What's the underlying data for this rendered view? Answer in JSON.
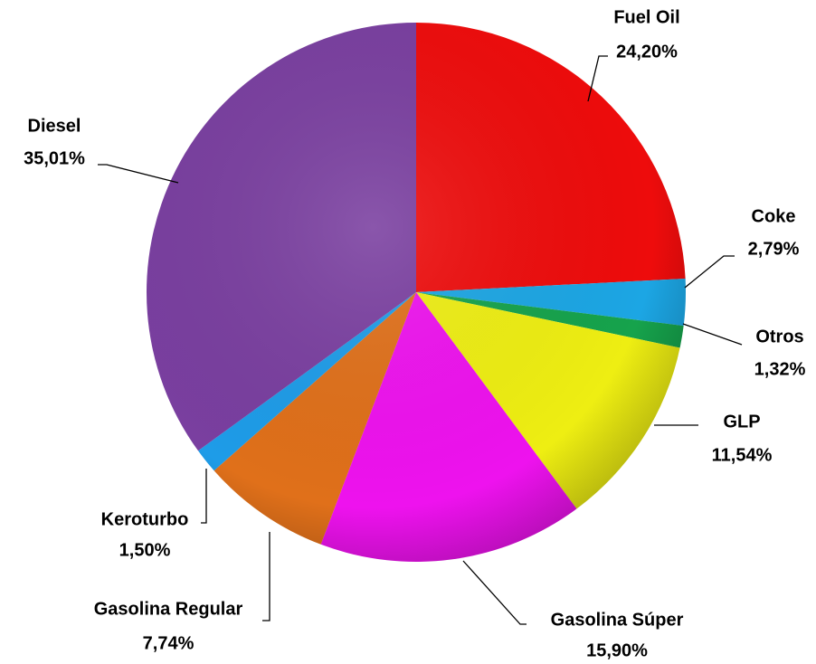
{
  "chart_data": {
    "type": "pie",
    "categories": [
      "Fuel Oil",
      "Coke",
      "Otros",
      "GLP",
      "Gasolina Súper",
      "Gasolina Regular",
      "Keroturbo",
      "Diesel"
    ],
    "values": [
      24.2,
      2.79,
      1.32,
      11.54,
      15.9,
      7.74,
      1.5,
      35.01
    ],
    "value_labels": [
      "24,20%",
      "2,79%",
      "1,32%",
      "11,54%",
      "15,90%",
      "7,74%",
      "1,50%",
      "35,01%"
    ],
    "colors": [
      "#ee0c0c",
      "#1ca6e4",
      "#16a34c",
      "#eeee12",
      "#ee12ee",
      "#e0701a",
      "#1e9ce8",
      "#7a3fa0"
    ]
  }
}
